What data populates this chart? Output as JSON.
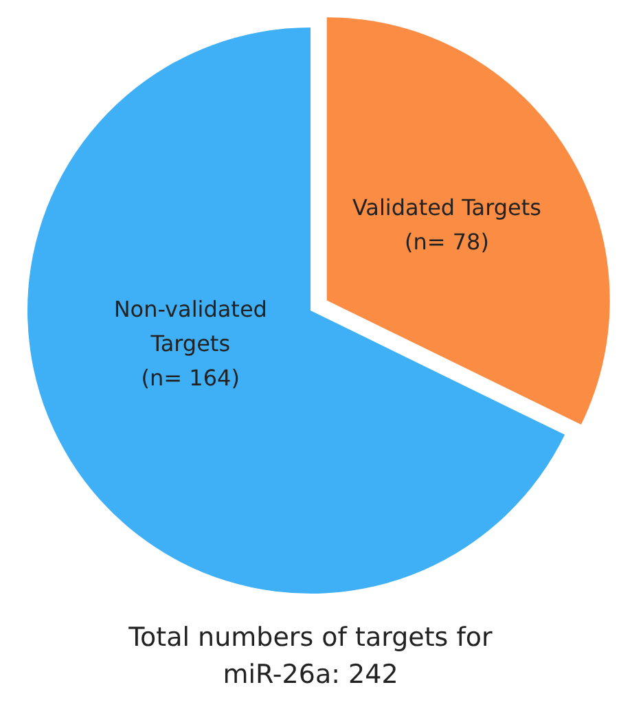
{
  "chart_data": {
    "type": "pie",
    "title": "Total numbers of targets for miR-26a: 242",
    "categories": [
      "Validated Targets",
      "Non-validated Targets"
    ],
    "values": [
      78,
      164
    ],
    "colors": [
      "#fb8c43",
      "#3fb0f6"
    ],
    "value_labels": [
      "(n= 78)",
      "(n= 164)"
    ]
  }
}
